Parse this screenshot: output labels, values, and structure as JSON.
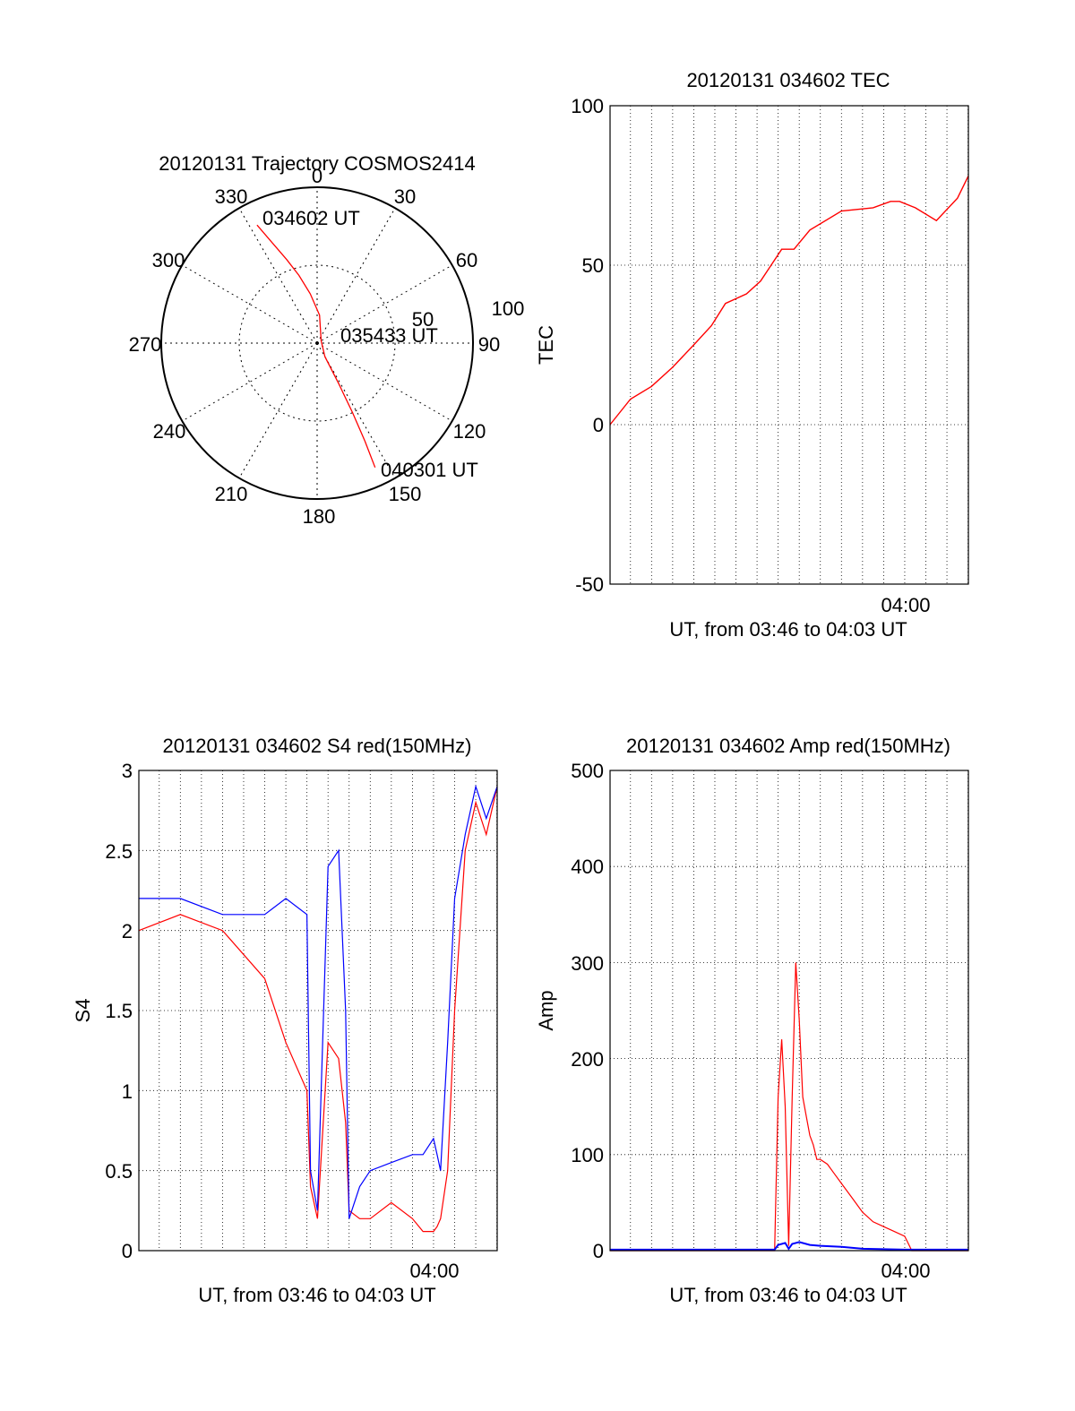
{
  "colors": {
    "red": "#ff0000",
    "blue": "#0000ff",
    "axis": "#000000"
  },
  "chart_data": [
    {
      "type": "polar",
      "title": "20120131 Trajectory COSMOS2414",
      "azimuth_labels": [
        "0",
        "30",
        "60",
        "90",
        "120",
        "150",
        "180",
        "210",
        "240",
        "270",
        "300",
        "330"
      ],
      "ring_labels": [
        "50",
        "100"
      ],
      "rlim": [
        0,
        100
      ],
      "grid": true,
      "series": [
        {
          "color": "red",
          "points": [
            [
              333,
              85
            ],
            [
              336,
              70
            ],
            [
              340,
              57
            ],
            [
              345,
              45
            ],
            [
              352,
              32
            ],
            [
              5,
              18
            ],
            [
              60,
              3
            ],
            [
              150,
              10
            ],
            [
              152,
              30
            ],
            [
              153,
              50
            ],
            [
              154,
              70
            ],
            [
              155,
              88
            ]
          ]
        }
      ],
      "annotations": [
        {
          "text": "034602 UT",
          "azimuth": 333,
          "r": 85
        },
        {
          "text": "035433 UT",
          "azimuth": 60,
          "r": 3
        },
        {
          "text": "040301 UT",
          "azimuth": 155,
          "r": 88
        }
      ]
    },
    {
      "type": "line",
      "title": "20120131 034602 TEC",
      "xlabel": "UT, from 03:46 to 04:03 UT",
      "ylabel": "TEC",
      "xlim": [
        "03:46:02",
        "04:03:01"
      ],
      "ylim": [
        -50,
        100
      ],
      "yticks": [
        "-50",
        "0",
        "50",
        "100"
      ],
      "xtick_labels": [
        {
          "at": "04:00",
          "label": "04:00"
        }
      ],
      "grid": true,
      "series": [
        {
          "color": "red",
          "x": [
            "03:46:02",
            "03:47:00",
            "03:48:00",
            "03:49:00",
            "03:50:00",
            "03:50:50",
            "03:51:30",
            "03:52:30",
            "03:53:10",
            "03:53:40",
            "03:54:10",
            "03:54:45",
            "03:55:00",
            "03:55:30",
            "03:57:00",
            "03:58:30",
            "03:59:20",
            "03:59:45",
            "04:00:30",
            "04:01:30",
            "04:02:30",
            "04:03:01"
          ],
          "y": [
            0,
            8,
            12,
            18,
            25,
            31,
            38,
            41,
            45,
            50,
            55,
            55,
            57,
            61,
            67,
            68,
            70,
            70,
            68,
            64,
            71,
            78
          ]
        }
      ]
    },
    {
      "type": "line",
      "title": "20120131 034602 S4 red(150MHz)",
      "xlabel": "UT, from 03:46 to 04:03 UT",
      "ylabel": "S4",
      "xlim": [
        "03:46:02",
        "04:03:01"
      ],
      "ylim": [
        0,
        3
      ],
      "yticks": [
        "0",
        "0.5",
        "1",
        "1.5",
        "2",
        "2.5",
        "3"
      ],
      "xtick_labels": [
        {
          "at": "04:00",
          "label": "04:00"
        }
      ],
      "grid": true,
      "series": [
        {
          "color": "red",
          "x": [
            "03:46:02",
            "03:48:00",
            "03:50:00",
            "03:52:00",
            "03:53:00",
            "03:54:00",
            "03:54:10",
            "03:54:30",
            "03:55:00",
            "03:55:30",
            "03:55:50",
            "03:56:00",
            "03:56:30",
            "03:57:00",
            "03:58:00",
            "03:59:00",
            "03:59:30",
            "04:00:00",
            "04:00:10",
            "04:00:20",
            "04:00:40",
            "04:01:00",
            "04:01:30",
            "04:02:00",
            "04:02:30",
            "04:03:01"
          ],
          "y": [
            2.0,
            2.1,
            2.0,
            1.7,
            1.3,
            1.0,
            0.4,
            0.2,
            1.3,
            1.2,
            0.8,
            0.25,
            0.2,
            0.2,
            0.3,
            0.2,
            0.12,
            0.12,
            0.15,
            0.2,
            0.5,
            1.5,
            2.5,
            2.8,
            2.6,
            2.9
          ]
        },
        {
          "color": "blue",
          "x": [
            "03:46:02",
            "03:48:00",
            "03:50:00",
            "03:52:00",
            "03:53:00",
            "03:54:00",
            "03:54:10",
            "03:54:30",
            "03:55:00",
            "03:55:30",
            "03:55:50",
            "03:56:00",
            "03:56:30",
            "03:57:00",
            "03:58:00",
            "03:59:00",
            "03:59:30",
            "04:00:00",
            "04:00:10",
            "04:00:20",
            "04:00:40",
            "04:01:00",
            "04:01:30",
            "04:02:00",
            "04:02:30",
            "04:03:01"
          ],
          "y": [
            2.2,
            2.2,
            2.1,
            2.1,
            2.2,
            2.1,
            0.5,
            0.25,
            2.4,
            2.5,
            1.5,
            0.2,
            0.4,
            0.5,
            0.55,
            0.6,
            0.6,
            0.7,
            0.6,
            0.5,
            1.3,
            2.2,
            2.6,
            2.9,
            2.7,
            2.9
          ]
        }
      ]
    },
    {
      "type": "line",
      "title": "20120131 034602 Amp red(150MHz)",
      "xlabel": "UT, from 03:46 to 04:03 UT",
      "ylabel": "Amp",
      "xlim": [
        "03:46:02",
        "04:03:01"
      ],
      "ylim": [
        0,
        500
      ],
      "yticks": [
        "0",
        "100",
        "200",
        "300",
        "400",
        "500"
      ],
      "xtick_labels": [
        {
          "at": "04:00",
          "label": "04:00"
        }
      ],
      "grid": true,
      "series": [
        {
          "color": "red",
          "x": [
            "03:46:02",
            "03:53:50",
            "03:54:00",
            "03:54:10",
            "03:54:20",
            "03:54:30",
            "03:54:40",
            "03:54:50",
            "03:55:00",
            "03:55:10",
            "03:55:20",
            "03:55:30",
            "03:55:40",
            "03:55:50",
            "03:56:00",
            "03:56:20",
            "03:56:40",
            "03:57:00",
            "03:57:30",
            "03:58:00",
            "03:58:30",
            "03:59:00",
            "03:59:30",
            "04:00:00",
            "04:00:20",
            "04:01:00",
            "04:03:01"
          ],
          "y": [
            0,
            0,
            160,
            220,
            150,
            5,
            160,
            300,
            240,
            160,
            140,
            120,
            110,
            95,
            95,
            90,
            80,
            70,
            55,
            40,
            30,
            25,
            20,
            15,
            0,
            0,
            0
          ]
        },
        {
          "color": "blue",
          "x": [
            "03:46:02",
            "03:53:50",
            "03:54:00",
            "03:54:20",
            "03:54:30",
            "03:54:40",
            "03:55:00",
            "03:55:30",
            "03:56:00",
            "03:57:00",
            "03:58:00",
            "04:00:00",
            "04:03:01"
          ],
          "y": [
            1,
            1,
            6,
            8,
            2,
            7,
            9,
            6,
            5,
            4,
            2,
            1,
            1
          ]
        }
      ]
    }
  ]
}
